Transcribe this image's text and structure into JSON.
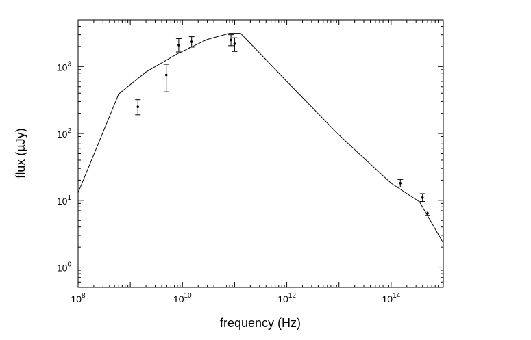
{
  "chart_data": {
    "type": "scatter",
    "title": "",
    "xlabel": "frequency (Hz)",
    "ylabel": "flux (µJy)",
    "xscale": "log",
    "yscale": "log",
    "xlim": [
      100000000.0,
      1000000000000000.0
    ],
    "ylim": [
      0.5,
      5000
    ],
    "grid": false,
    "legend": "none",
    "x_ticks": [
      {
        "value": 100000000.0,
        "base": "10",
        "exp": "8"
      },
      {
        "value": 10000000000.0,
        "base": "10",
        "exp": "10"
      },
      {
        "value": 1000000000000.0,
        "base": "10",
        "exp": "12"
      },
      {
        "value": 100000000000000.0,
        "base": "10",
        "exp": "14"
      }
    ],
    "y_ticks": [
      {
        "value": 1,
        "base": "10",
        "exp": "0"
      },
      {
        "value": 10,
        "base": "10",
        "exp": "1"
      },
      {
        "value": 100,
        "base": "10",
        "exp": "2"
      },
      {
        "value": 1000,
        "base": "10",
        "exp": "3"
      }
    ],
    "series": [
      {
        "kind": "line",
        "x": [
          100000000.0,
          600000000.0,
          2000000000.0,
          8000000000.0,
          30000000000.0,
          80000000000.0,
          130000000000.0,
          1000000000000.0,
          10000000000000.0,
          100000000000000.0,
          350000000000000.0,
          1000000000000000.0
        ],
        "y": [
          13,
          390,
          830,
          1550,
          2550,
          3150,
          3150,
          600,
          95,
          18,
          9.5,
          2.3
        ]
      },
      {
        "kind": "points",
        "x": [
          1400000000.0,
          4900000000.0,
          8500000000.0,
          15000000000.0,
          85000000000.0,
          100000000000.0,
          150000000000000.0,
          400000000000000.0,
          500000000000000.0
        ],
        "y": [
          250,
          750,
          2100,
          2350,
          2500,
          2200,
          18,
          11,
          6.4
        ],
        "yerr_low": [
          190,
          420,
          1650,
          1950,
          2050,
          1680,
          15.8,
          9.6,
          5.9
        ],
        "yerr_high": [
          320,
          1080,
          2620,
          2800,
          3000,
          2700,
          20.5,
          12.6,
          6.9
        ]
      }
    ]
  }
}
